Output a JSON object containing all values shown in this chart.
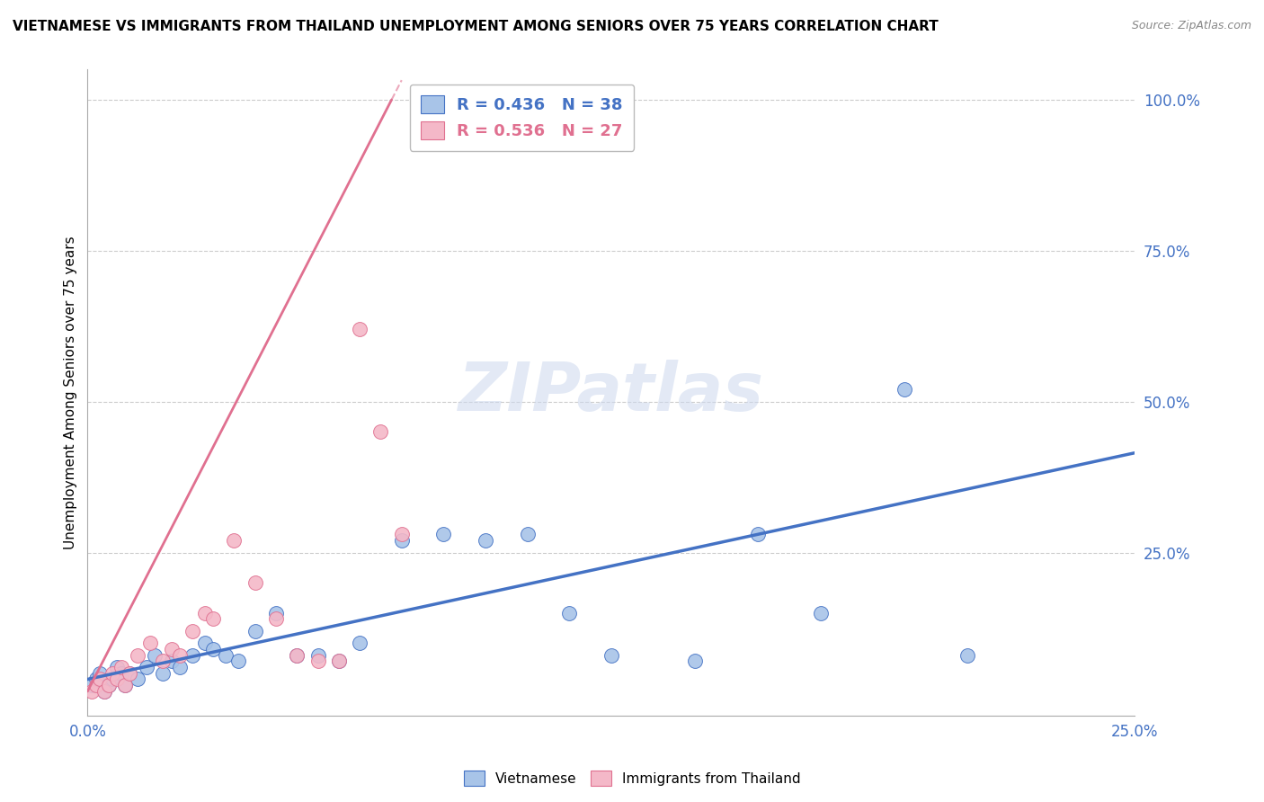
{
  "title": "VIETNAMESE VS IMMIGRANTS FROM THAILAND UNEMPLOYMENT AMONG SENIORS OVER 75 YEARS CORRELATION CHART",
  "source": "Source: ZipAtlas.com",
  "ylabel": "Unemployment Among Seniors over 75 years",
  "ylabel_right_vals": [
    1.0,
    0.75,
    0.5,
    0.25
  ],
  "ylabel_right_labels": [
    "100.0%",
    "75.0%",
    "50.0%",
    "25.0%"
  ],
  "xlim": [
    0.0,
    0.25
  ],
  "ylim": [
    -0.02,
    1.05
  ],
  "r_vietnamese": 0.436,
  "n_vietnamese": 38,
  "r_thailand": 0.536,
  "n_thailand": 27,
  "color_vietnamese": "#a8c4e8",
  "color_thailand": "#f4b8c8",
  "color_blue_text": "#4472c4",
  "color_pink_text": "#e07090",
  "trendline_vietnamese_color": "#4472c4",
  "trendline_thailand_color": "#e07090",
  "watermark": "ZIPatlas",
  "vietnamese_x": [
    0.001,
    0.002,
    0.003,
    0.004,
    0.005,
    0.006,
    0.007,
    0.008,
    0.009,
    0.01,
    0.012,
    0.014,
    0.016,
    0.018,
    0.02,
    0.022,
    0.025,
    0.028,
    0.03,
    0.033,
    0.036,
    0.04,
    0.045,
    0.05,
    0.055,
    0.06,
    0.065,
    0.075,
    0.085,
    0.095,
    0.105,
    0.115,
    0.125,
    0.145,
    0.16,
    0.175,
    0.195,
    0.21
  ],
  "vietnamese_y": [
    0.03,
    0.04,
    0.05,
    0.02,
    0.03,
    0.04,
    0.06,
    0.05,
    0.03,
    0.05,
    0.04,
    0.06,
    0.08,
    0.05,
    0.07,
    0.06,
    0.08,
    0.1,
    0.09,
    0.08,
    0.07,
    0.12,
    0.15,
    0.08,
    0.08,
    0.07,
    0.1,
    0.27,
    0.28,
    0.27,
    0.28,
    0.15,
    0.08,
    0.07,
    0.28,
    0.15,
    0.52,
    0.08
  ],
  "thailand_x": [
    0.001,
    0.002,
    0.003,
    0.004,
    0.005,
    0.006,
    0.007,
    0.008,
    0.009,
    0.01,
    0.012,
    0.015,
    0.018,
    0.02,
    0.022,
    0.025,
    0.028,
    0.03,
    0.035,
    0.04,
    0.045,
    0.05,
    0.055,
    0.06,
    0.065,
    0.07,
    0.075
  ],
  "thailand_y": [
    0.02,
    0.03,
    0.04,
    0.02,
    0.03,
    0.05,
    0.04,
    0.06,
    0.03,
    0.05,
    0.08,
    0.1,
    0.07,
    0.09,
    0.08,
    0.12,
    0.15,
    0.14,
    0.27,
    0.2,
    0.14,
    0.08,
    0.07,
    0.07,
    0.62,
    0.45,
    0.28
  ],
  "trendline_viet_x0": 0.0,
  "trendline_viet_x1": 0.25,
  "trendline_thai_x0": 0.0,
  "trendline_thai_x1": 0.075,
  "trendline_thai_slope": 13.5,
  "trendline_thai_intercept": 0.02,
  "trendline_viet_slope": 1.5,
  "trendline_viet_intercept": 0.04
}
